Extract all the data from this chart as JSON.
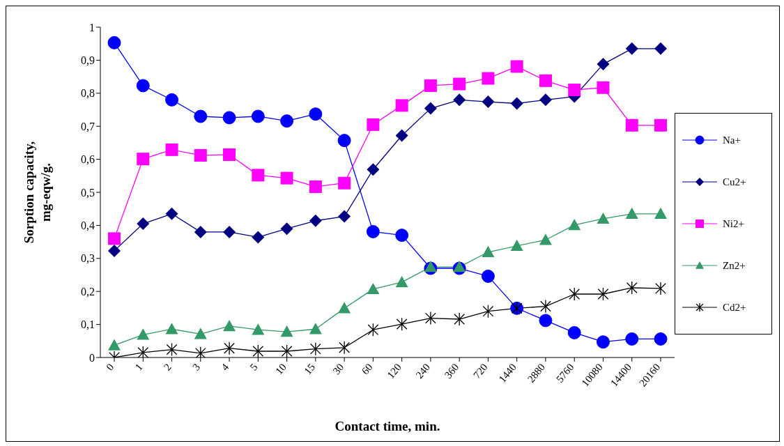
{
  "chart_data": {
    "type": "line",
    "xlabel": "Contact time, min.",
    "ylabel": "Sorption capacity,\nmg-eqw/g.",
    "categories": [
      "0",
      "1",
      "2",
      "3",
      "4",
      "5",
      "10",
      "15",
      "30",
      "60",
      "120",
      "240",
      "360",
      "720",
      "1440",
      "2880",
      "5760",
      "10080",
      "14400",
      "20160"
    ],
    "ylim": [
      0,
      1
    ],
    "yticks": [
      0,
      {
        "value": 0.1,
        "label": "0,1"
      },
      {
        "value": 0.2,
        "label": "0,2"
      },
      {
        "value": 0.3,
        "label": "0,3"
      },
      {
        "value": 0.4,
        "label": "0,4"
      },
      {
        "value": 0.5,
        "label": "0,5"
      },
      {
        "value": 0.6,
        "label": "0,6"
      },
      {
        "value": 0.7,
        "label": "0,7"
      },
      {
        "value": 0.8,
        "label": "0,8"
      },
      {
        "value": 0.9,
        "label": "0,9"
      },
      1
    ],
    "grid": false,
    "legend": "right",
    "line_style": "solid",
    "series": [
      {
        "name": "Na+",
        "color": "#0000ff",
        "marker": "circle",
        "values": [
          0.953,
          0.823,
          0.78,
          0.73,
          0.726,
          0.73,
          0.716,
          0.737,
          0.657,
          0.381,
          0.37,
          0.27,
          0.27,
          0.246,
          0.149,
          0.112,
          0.075,
          0.047,
          0.056,
          0.056
        ]
      },
      {
        "name": "Cu2+",
        "color": "#000080",
        "marker": "diamond",
        "values": [
          0.323,
          0.405,
          0.435,
          0.38,
          0.38,
          0.364,
          0.39,
          0.414,
          0.427,
          0.569,
          0.672,
          0.754,
          0.78,
          0.774,
          0.769,
          0.78,
          0.79,
          0.888,
          0.935,
          0.935
        ]
      },
      {
        "name": "Ni2+",
        "color": "#ff00ff",
        "marker": "square",
        "values": [
          0.36,
          0.601,
          0.629,
          0.612,
          0.614,
          0.552,
          0.543,
          0.517,
          0.528,
          0.705,
          0.763,
          0.823,
          0.828,
          0.845,
          0.881,
          0.838,
          0.81,
          0.817,
          0.703,
          0.703
        ]
      },
      {
        "name": "Zn2+",
        "color": "#339966",
        "marker": "triangle",
        "values": [
          0.037,
          0.069,
          0.086,
          0.071,
          0.095,
          0.084,
          0.078,
          0.086,
          0.149,
          0.207,
          0.228,
          0.274,
          0.274,
          0.319,
          0.338,
          0.356,
          0.401,
          0.42,
          0.435,
          0.435
        ]
      },
      {
        "name": "Cd2+",
        "color": "#000000",
        "marker": "cross",
        "values": [
          0,
          0.015,
          0.024,
          0.013,
          0.028,
          0.019,
          0.019,
          0.026,
          0.03,
          0.084,
          0.101,
          0.119,
          0.116,
          0.14,
          0.149,
          0.155,
          0.192,
          0.192,
          0.211,
          0.209
        ]
      }
    ]
  }
}
